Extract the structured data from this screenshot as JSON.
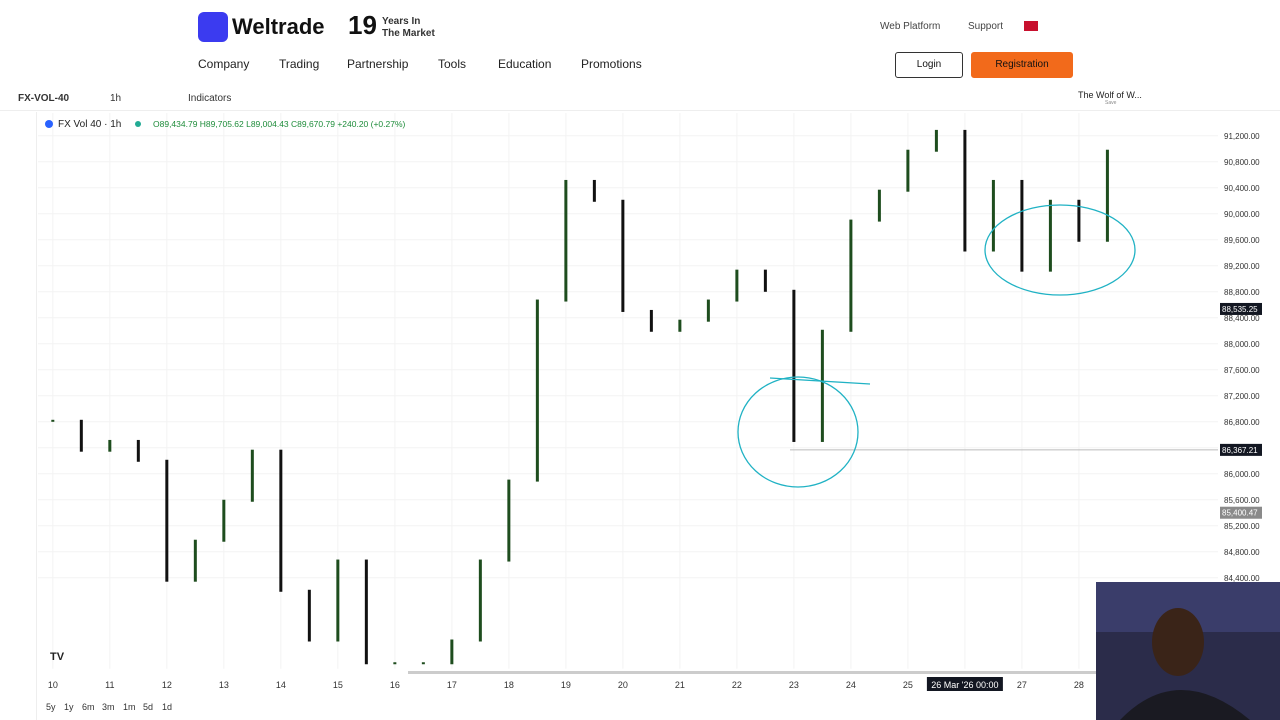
{
  "header": {
    "brand": "Weltrade",
    "years": "19",
    "years_line1": "Years In",
    "years_line2": "The Market",
    "links": [
      "Web Platform",
      "Support"
    ],
    "nav": [
      "Company",
      "Trading",
      "Partnership",
      "Tools",
      "Education",
      "Promotions"
    ],
    "login": "Login",
    "register": "Registration"
  },
  "toolbar": {
    "symbol": "FX-VOL-40",
    "interval": "1h",
    "indicators": "Indicators",
    "layout": "The Wolf of W...",
    "save": "Save"
  },
  "legend": {
    "title": "FX Vol 40 · 1h",
    "ohlc": "O89,434.79 H89,705.62 L89,004.43 C89,670.79 +240.20 (+0.27%)"
  },
  "ranges": [
    "5y",
    "1y",
    "6m",
    "3m",
    "1m",
    "5d",
    "1d"
  ],
  "chart_data": {
    "type": "candlestick",
    "color": "#1e4d1e",
    "x": [
      10,
      10.5,
      11,
      11.5,
      12,
      12.5,
      13,
      13.5,
      14,
      14.5,
      15,
      15.5,
      16,
      16.5,
      17,
      17.5,
      18,
      18.5,
      19,
      19.5,
      20,
      20.5,
      21,
      21.5,
      22,
      22.5,
      23,
      23.5,
      24,
      24.5,
      25,
      25.5,
      26,
      26.5,
      27,
      27.5,
      28,
      28.5
    ],
    "values": [
      86830,
      86370,
      86520,
      86215,
      84370,
      84985,
      85600,
      86370,
      84215,
      83450,
      84680,
      83100,
      83100,
      83100,
      83450,
      84680,
      85910,
      88680,
      90520,
      90215,
      88520,
      88215,
      88370,
      88680,
      89140,
      88830,
      86520,
      88215,
      89910,
      90370,
      90985,
      91290,
      89450,
      90520,
      89140,
      90215,
      89600,
      90985
    ],
    "xlim": [
      9.74,
      30.44
    ],
    "ylim": [
      83000,
      91550
    ],
    "xticks": [
      10,
      11,
      12,
      13,
      14,
      15,
      16,
      17,
      18,
      19,
      20,
      21,
      22,
      23,
      24,
      25,
      {
        "value": 26,
        "label": "26 Mar '26  00:00"
      },
      27,
      28
    ],
    "yticks": [
      {
        "value": 91200,
        "label": "91,200.00"
      },
      {
        "value": 90800,
        "label": "90,800.00"
      },
      {
        "value": 90400,
        "label": "90,400.00"
      },
      {
        "value": 90000,
        "label": "90,000.00"
      },
      {
        "value": 89600,
        "label": "89,600.00"
      },
      {
        "value": 89200,
        "label": "89,200.00"
      },
      {
        "value": 88800,
        "label": "88,800.00"
      },
      {
        "value": 88400,
        "label": "88,400.00"
      },
      {
        "value": 88000,
        "label": "88,000.00"
      },
      {
        "value": 87600,
        "label": "87,600.00"
      },
      {
        "value": 87200,
        "label": "87,200.00"
      },
      {
        "value": 86800,
        "label": "86,800.00"
      },
      {
        "value": 86400,
        "label": "86,400.00"
      },
      {
        "value": 86000,
        "label": "86,000.00"
      },
      {
        "value": 85600,
        "label": "85,600.00"
      },
      {
        "value": 85200,
        "label": "85,200.00"
      },
      {
        "value": 84800,
        "label": "84,800.00"
      },
      {
        "value": 84400,
        "label": "84,400.00"
      }
    ],
    "price_labels": [
      {
        "value": 88535.25,
        "label": "88,535.25"
      },
      {
        "value": 86367.21,
        "label": "86,367.21"
      },
      {
        "value": 85400.47,
        "label": "85,400.47"
      }
    ],
    "grid": true
  }
}
